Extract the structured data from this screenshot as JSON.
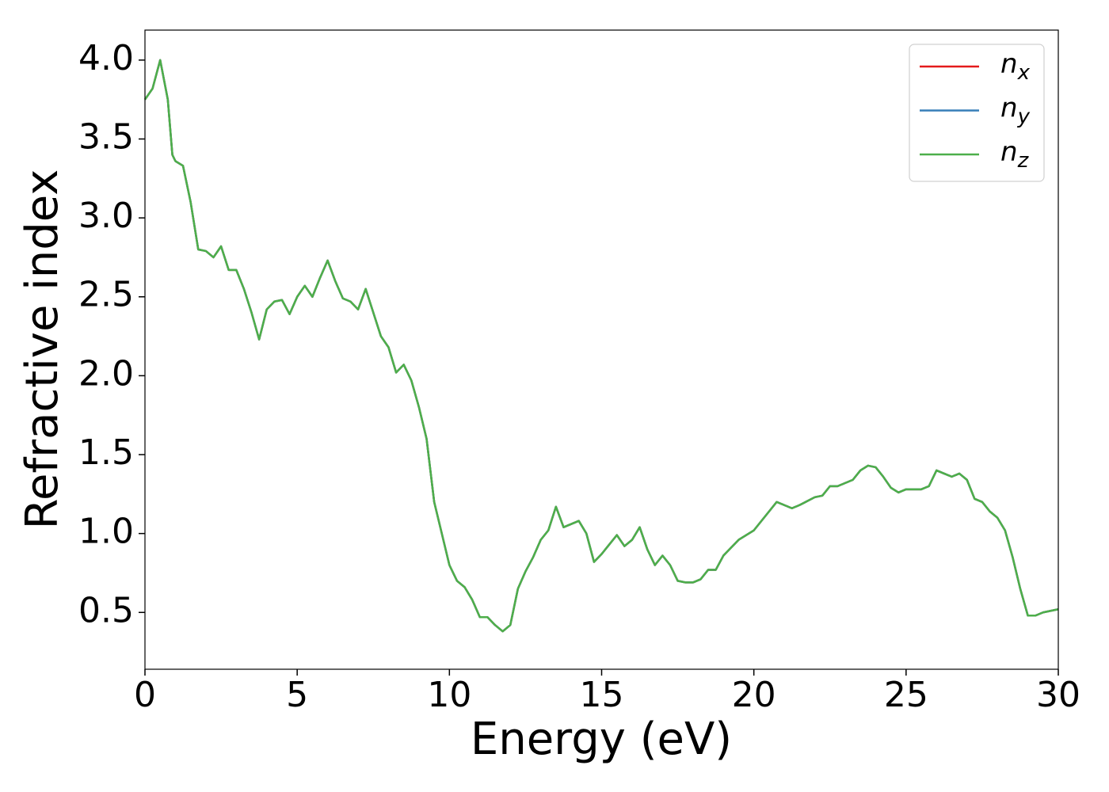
{
  "chart_data": {
    "type": "line",
    "xlabel": "Energy (eV)",
    "ylabel": "Refractive index",
    "x": [
      0,
      0.25,
      0.5,
      0.75,
      0.9,
      1.0,
      1.25,
      1.5,
      1.75,
      2.0,
      2.25,
      2.5,
      2.75,
      3.0,
      3.25,
      3.5,
      3.75,
      4.0,
      4.25,
      4.5,
      4.75,
      5.0,
      5.25,
      5.5,
      5.75,
      6.0,
      6.25,
      6.5,
      6.75,
      7.0,
      7.25,
      7.5,
      7.75,
      8.0,
      8.25,
      8.5,
      8.75,
      9.0,
      9.25,
      9.5,
      9.75,
      10.0,
      10.25,
      10.5,
      10.75,
      11.0,
      11.25,
      11.5,
      11.75,
      12.0,
      12.25,
      12.5,
      12.75,
      13.0,
      13.25,
      13.5,
      13.75,
      14.0,
      14.25,
      14.5,
      14.75,
      15.0,
      15.25,
      15.5,
      15.75,
      16.0,
      16.25,
      16.5,
      16.75,
      17.0,
      17.25,
      17.5,
      17.75,
      18.0,
      18.25,
      18.5,
      18.75,
      19.0,
      19.5,
      20.0,
      20.5,
      20.75,
      21.0,
      21.25,
      21.5,
      22.0,
      22.25,
      22.5,
      22.75,
      23.0,
      23.25,
      23.5,
      23.75,
      24.0,
      24.25,
      24.5,
      24.75,
      25.0,
      25.5,
      25.75,
      26.0,
      26.25,
      26.5,
      26.75,
      27.0,
      27.25,
      27.5,
      27.75,
      28.0,
      28.25,
      28.5,
      28.75,
      29.0,
      29.25,
      29.5,
      30.0
    ],
    "series": [
      {
        "name": "n_x",
        "color": "#e41a1c",
        "values": [
          3.75,
          3.82,
          4.0,
          3.75,
          3.4,
          3.36,
          3.33,
          3.1,
          2.8,
          2.79,
          2.75,
          2.82,
          2.67,
          2.67,
          2.55,
          2.4,
          2.23,
          2.42,
          2.47,
          2.48,
          2.39,
          2.5,
          2.57,
          2.5,
          2.62,
          2.73,
          2.6,
          2.49,
          2.47,
          2.42,
          2.55,
          2.4,
          2.25,
          2.18,
          2.02,
          2.07,
          1.97,
          1.8,
          1.6,
          1.2,
          1.0,
          0.8,
          0.7,
          0.66,
          0.58,
          0.47,
          0.47,
          0.42,
          0.38,
          0.42,
          0.65,
          0.76,
          0.85,
          0.96,
          1.02,
          1.17,
          1.04,
          1.06,
          1.08,
          1.0,
          0.82,
          0.87,
          0.93,
          0.99,
          0.92,
          0.96,
          1.04,
          0.9,
          0.8,
          0.86,
          0.8,
          0.7,
          0.69,
          0.69,
          0.71,
          0.77,
          0.77,
          0.86,
          0.96,
          1.02,
          1.14,
          1.2,
          1.18,
          1.16,
          1.18,
          1.23,
          1.24,
          1.3,
          1.3,
          1.32,
          1.34,
          1.4,
          1.43,
          1.42,
          1.36,
          1.29,
          1.26,
          1.28,
          1.28,
          1.3,
          1.4,
          1.38,
          1.36,
          1.38,
          1.34,
          1.22,
          1.2,
          1.14,
          1.1,
          1.02,
          0.85,
          0.65,
          0.48,
          0.48,
          0.5,
          0.52
        ]
      },
      {
        "name": "n_y",
        "color": "#377eb8",
        "values": [
          3.75,
          3.82,
          4.0,
          3.75,
          3.4,
          3.36,
          3.33,
          3.1,
          2.8,
          2.79,
          2.75,
          2.82,
          2.67,
          2.67,
          2.55,
          2.4,
          2.23,
          2.42,
          2.47,
          2.48,
          2.39,
          2.5,
          2.57,
          2.5,
          2.62,
          2.73,
          2.6,
          2.49,
          2.47,
          2.42,
          2.55,
          2.4,
          2.25,
          2.18,
          2.02,
          2.07,
          1.97,
          1.8,
          1.6,
          1.2,
          1.0,
          0.8,
          0.7,
          0.66,
          0.58,
          0.47,
          0.47,
          0.42,
          0.38,
          0.42,
          0.65,
          0.76,
          0.85,
          0.96,
          1.02,
          1.17,
          1.04,
          1.06,
          1.08,
          1.0,
          0.82,
          0.87,
          0.93,
          0.99,
          0.92,
          0.96,
          1.04,
          0.9,
          0.8,
          0.86,
          0.8,
          0.7,
          0.69,
          0.69,
          0.71,
          0.77,
          0.77,
          0.86,
          0.96,
          1.02,
          1.14,
          1.2,
          1.18,
          1.16,
          1.18,
          1.23,
          1.24,
          1.3,
          1.3,
          1.32,
          1.34,
          1.4,
          1.43,
          1.42,
          1.36,
          1.29,
          1.26,
          1.28,
          1.28,
          1.3,
          1.4,
          1.38,
          1.36,
          1.38,
          1.34,
          1.22,
          1.2,
          1.14,
          1.1,
          1.02,
          0.85,
          0.65,
          0.48,
          0.48,
          0.5,
          0.52
        ]
      },
      {
        "name": "n_z",
        "color": "#4daf4a",
        "values": [
          3.75,
          3.82,
          4.0,
          3.75,
          3.4,
          3.36,
          3.33,
          3.1,
          2.8,
          2.79,
          2.75,
          2.82,
          2.67,
          2.67,
          2.55,
          2.4,
          2.23,
          2.42,
          2.47,
          2.48,
          2.39,
          2.5,
          2.57,
          2.5,
          2.62,
          2.73,
          2.6,
          2.49,
          2.47,
          2.42,
          2.55,
          2.4,
          2.25,
          2.18,
          2.02,
          2.07,
          1.97,
          1.8,
          1.6,
          1.2,
          1.0,
          0.8,
          0.7,
          0.66,
          0.58,
          0.47,
          0.47,
          0.42,
          0.38,
          0.42,
          0.65,
          0.76,
          0.85,
          0.96,
          1.02,
          1.17,
          1.04,
          1.06,
          1.08,
          1.0,
          0.82,
          0.87,
          0.93,
          0.99,
          0.92,
          0.96,
          1.04,
          0.9,
          0.8,
          0.86,
          0.8,
          0.7,
          0.69,
          0.69,
          0.71,
          0.77,
          0.77,
          0.86,
          0.96,
          1.02,
          1.14,
          1.2,
          1.18,
          1.16,
          1.18,
          1.23,
          1.24,
          1.3,
          1.3,
          1.32,
          1.34,
          1.4,
          1.43,
          1.42,
          1.36,
          1.29,
          1.26,
          1.28,
          1.28,
          1.3,
          1.4,
          1.38,
          1.36,
          1.38,
          1.34,
          1.22,
          1.2,
          1.14,
          1.1,
          1.02,
          0.85,
          0.65,
          0.48,
          0.48,
          0.5,
          0.52
        ]
      }
    ],
    "xlim": [
      0,
      30
    ],
    "xticks": [
      0,
      5,
      10,
      15,
      20,
      25,
      30
    ],
    "ylim": [
      0.14,
      4.19
    ],
    "yticks": [
      0.5,
      {
        "value": 1,
        "label": "1.0"
      },
      1.5,
      {
        "value": 2,
        "label": "2.0"
      },
      2.5,
      {
        "value": 3,
        "label": "3.0"
      },
      3.5,
      {
        "value": 4,
        "label": "4.0"
      }
    ],
    "grid": false,
    "legend": "upper right"
  }
}
